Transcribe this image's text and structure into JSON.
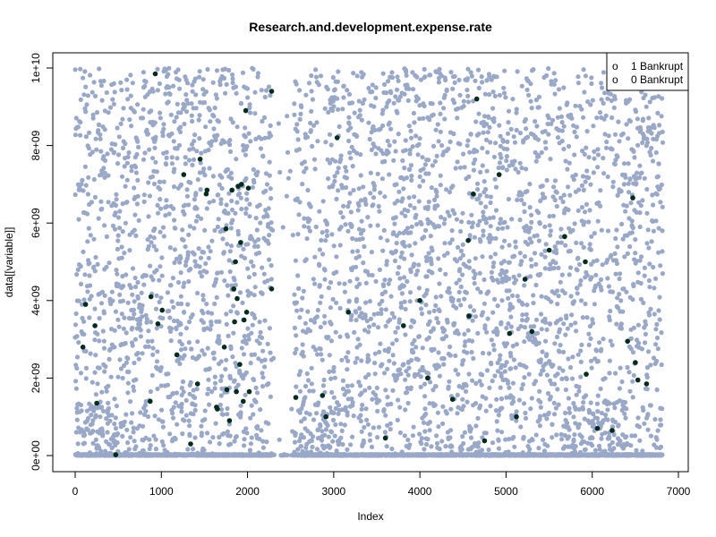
{
  "chart_data": {
    "type": "scatter",
    "title": "Research.and.development.expense.rate",
    "xlabel": "Index",
    "ylabel": "data[[variable]]",
    "xlim": [
      0,
      7000
    ],
    "ylim": [
      0,
      10000000000
    ],
    "x_ticks": [
      0,
      1000,
      2000,
      3000,
      4000,
      5000,
      6000,
      7000
    ],
    "x_tick_labels": [
      "0",
      "1000",
      "2000",
      "3000",
      "4000",
      "5000",
      "6000",
      "7000"
    ],
    "y_ticks": [
      0,
      2000000000,
      4000000000,
      6000000000,
      8000000000,
      10000000000
    ],
    "y_tick_labels": [
      "0e+00",
      "2e+09",
      "4e+09",
      "6e+09",
      "8e+09",
      "1e+10"
    ],
    "grid": false,
    "legend_position": "top-right",
    "legend": [
      {
        "symbol": "o",
        "label": "1 Bankrupt"
      },
      {
        "symbol": "o",
        "label": "0 Bankrupt"
      }
    ],
    "colors": {
      "class_1": "#002b1e",
      "class_0": "#9aa8c8"
    },
    "series": [
      {
        "class": "1",
        "color": "#002b1e",
        "x": [
          90,
          120,
          230,
          250,
          470,
          870,
          880,
          930,
          960,
          1010,
          1180,
          1260,
          1340,
          1420,
          1450,
          1520,
          1530,
          1640,
          1650,
          1730,
          1750,
          1760,
          1790,
          1820,
          1840,
          1850,
          1860,
          1870,
          1880,
          1890,
          1910,
          1920,
          1930,
          1950,
          1960,
          1980,
          1990,
          2010,
          2020,
          2280,
          2280,
          2560,
          2870,
          2910,
          3040,
          3170,
          3600,
          3810,
          4000,
          4090,
          4380,
          4560,
          4570,
          4620,
          4660,
          4750,
          4920,
          5040,
          5120,
          5220,
          5300,
          5500,
          5680,
          5920,
          5930,
          6060,
          6230,
          6410,
          6470,
          6500,
          6530,
          6630
        ],
        "y": [
          2800000000,
          3900000000,
          3350000000,
          1350000000,
          20000000,
          1400000000,
          4100000000,
          9850000000,
          3400000000,
          3750000000,
          2600000000,
          7250000000,
          300000000,
          1850000000,
          7650000000,
          6750000000,
          6850000000,
          1250000000,
          1200000000,
          2800000000,
          5850000000,
          1700000000,
          900000000,
          6850000000,
          4300000000,
          3450000000,
          5000000000,
          1650000000,
          4050000000,
          6950000000,
          2350000000,
          5500000000,
          7000000000,
          1400000000,
          3500000000,
          8900000000,
          3700000000,
          6900000000,
          1650000000,
          9400000000,
          4300000000,
          1500000000,
          1550000000,
          1000000000,
          8200000000,
          3700000000,
          450000000,
          3350000000,
          4000000000,
          2000000000,
          1450000000,
          5550000000,
          3600000000,
          6750000000,
          9200000000,
          380000000,
          7250000000,
          3150000000,
          1000000000,
          4550000000,
          3200000000,
          5300000000,
          5650000000,
          5000000000,
          2100000000,
          700000000,
          650000000,
          2950000000,
          6650000000,
          2400000000,
          1950000000,
          1850000000
        ]
      }
    ]
  }
}
